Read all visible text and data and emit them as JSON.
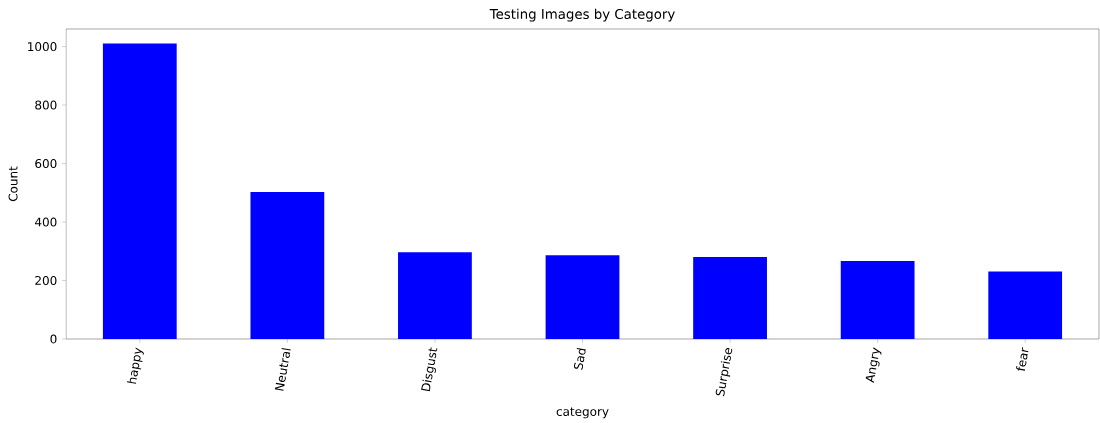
{
  "chart_data": {
    "type": "bar",
    "title": "Testing Images by Category",
    "xlabel": "category",
    "ylabel": "Count",
    "categories": [
      "happy",
      "Neutral",
      "Disgust",
      "Sad",
      "Surprise",
      "Angry",
      "fear"
    ],
    "values": [
      1010,
      503,
      297,
      286,
      280,
      267,
      231
    ],
    "color": "#0000ff",
    "ylim": [
      0,
      1060
    ],
    "yticks": [
      0,
      200,
      400,
      600,
      800,
      1000
    ]
  }
}
